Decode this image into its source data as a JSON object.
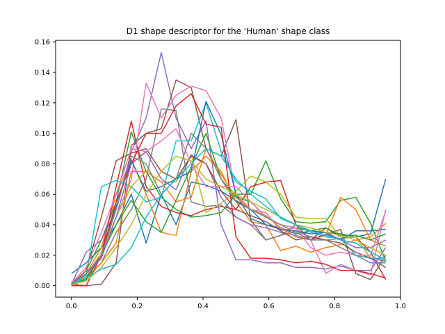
{
  "chart_data": {
    "type": "line",
    "title": "D1 shape descriptor for the 'Human' shape class",
    "xlabel": "",
    "ylabel": "",
    "xlim": [
      -0.048,
      1.0
    ],
    "ylim": [
      -0.0075,
      0.161
    ],
    "x_ticks": [
      "0.0",
      "0.2",
      "0.4",
      "0.6",
      "0.8",
      "1.0"
    ],
    "y_ticks": [
      "0.00",
      "0.02",
      "0.04",
      "0.06",
      "0.08",
      "0.10",
      "0.12",
      "0.14",
      "0.16"
    ],
    "grid": false,
    "legend": "none",
    "x": [
      0.0,
      0.045,
      0.091,
      0.136,
      0.182,
      0.227,
      0.273,
      0.318,
      0.364,
      0.409,
      0.455,
      0.5,
      0.545,
      0.591,
      0.636,
      0.682,
      0.727,
      0.773,
      0.818,
      0.864,
      0.909,
      0.955
    ],
    "series": [
      {
        "color": "#1f77b4",
        "values": [
          0.008,
          0.015,
          0.025,
          0.04,
          0.06,
          0.028,
          0.06,
          0.04,
          0.068,
          0.066,
          0.062,
          0.056,
          0.05,
          0.04,
          0.038,
          0.034,
          0.036,
          0.035,
          0.034,
          0.032,
          0.034,
          0.07
        ]
      },
      {
        "color": "#ff7f0e",
        "values": [
          0.002,
          0.008,
          0.025,
          0.06,
          0.083,
          0.06,
          0.035,
          0.033,
          0.075,
          0.085,
          0.075,
          0.055,
          0.042,
          0.04,
          0.023,
          0.026,
          0.022,
          0.025,
          0.027,
          0.03,
          0.032,
          0.041
        ]
      },
      {
        "color": "#2ca02c",
        "values": [
          0.001,
          0.01,
          0.03,
          0.055,
          0.101,
          0.075,
          0.058,
          0.05,
          0.045,
          0.046,
          0.048,
          0.06,
          0.06,
          0.082,
          0.057,
          0.042,
          0.041,
          0.042,
          0.056,
          0.058,
          0.041,
          0.016
        ]
      },
      {
        "color": "#d62728",
        "values": [
          0.002,
          0.005,
          0.02,
          0.065,
          0.108,
          0.065,
          0.052,
          0.048,
          0.046,
          0.05,
          0.052,
          0.05,
          0.065,
          0.068,
          0.069,
          0.04,
          0.03,
          0.038,
          0.032,
          0.032,
          0.022,
          0.004
        ]
      },
      {
        "color": "#9467bd",
        "values": [
          0.001,
          0.022,
          0.03,
          0.05,
          0.088,
          0.11,
          0.153,
          0.11,
          0.09,
          0.108,
          0.04,
          0.017,
          0.017,
          0.015,
          0.015,
          0.012,
          0.012,
          0.011,
          0.013,
          0.01,
          0.01,
          0.025
        ]
      },
      {
        "color": "#8c564b",
        "values": [
          0.001,
          0.0,
          0.001,
          0.015,
          0.092,
          0.1,
          0.103,
          0.135,
          0.13,
          0.09,
          0.085,
          0.109,
          0.043,
          0.03,
          0.033,
          0.04,
          0.036,
          0.033,
          0.037,
          0.008,
          0.004,
          0.02
        ]
      },
      {
        "color": "#e377c2",
        "values": [
          0.002,
          0.005,
          0.02,
          0.045,
          0.07,
          0.133,
          0.11,
          0.125,
          0.131,
          0.128,
          0.11,
          0.06,
          0.05,
          0.048,
          0.036,
          0.038,
          0.03,
          0.008,
          0.014,
          0.01,
          0.007,
          0.05
        ]
      },
      {
        "color": "#7f7f7f",
        "values": [
          0.001,
          0.005,
          0.015,
          0.035,
          0.05,
          0.07,
          0.116,
          0.115,
          0.055,
          0.052,
          0.053,
          0.045,
          0.04,
          0.03,
          0.033,
          0.036,
          0.032,
          0.03,
          0.031,
          0.032,
          0.018,
          0.016
        ]
      },
      {
        "color": "#bcbd22",
        "values": [
          0.002,
          0.006,
          0.022,
          0.045,
          0.065,
          0.075,
          0.068,
          0.068,
          0.086,
          0.048,
          0.054,
          0.062,
          0.072,
          0.068,
          0.06,
          0.045,
          0.044,
          0.044,
          0.032,
          0.032,
          0.018,
          0.017
        ]
      },
      {
        "color": "#17becf",
        "values": [
          0.001,
          0.007,
          0.065,
          0.069,
          0.065,
          0.055,
          0.058,
          0.095,
          0.095,
          0.12,
          0.088,
          0.068,
          0.062,
          0.057,
          0.044,
          0.04,
          0.035,
          0.032,
          0.031,
          0.02,
          0.018,
          0.018
        ]
      },
      {
        "color": "#1f77b4",
        "values": [
          0.0,
          0.005,
          0.02,
          0.052,
          0.082,
          0.062,
          0.065,
          0.07,
          0.075,
          0.121,
          0.099,
          0.06,
          0.044,
          0.04,
          0.037,
          0.036,
          0.034,
          0.035,
          0.03,
          0.036,
          0.036,
          0.037
        ]
      },
      {
        "color": "#ff7f0e",
        "values": [
          0.0,
          0.004,
          0.015,
          0.028,
          0.075,
          0.075,
          0.068,
          0.055,
          0.058,
          0.09,
          0.073,
          0.058,
          0.05,
          0.046,
          0.038,
          0.032,
          0.03,
          0.033,
          0.058,
          0.05,
          0.03,
          0.026
        ]
      },
      {
        "color": "#2ca02c",
        "values": [
          0.001,
          0.004,
          0.02,
          0.04,
          0.056,
          0.042,
          0.035,
          0.056,
          0.078,
          0.1,
          0.07,
          0.058,
          0.055,
          0.045,
          0.04,
          0.038,
          0.036,
          0.038,
          0.033,
          0.033,
          0.03,
          0.034
        ]
      },
      {
        "color": "#d62728",
        "values": [
          0.0,
          0.0,
          0.02,
          0.055,
          0.08,
          0.1,
          0.1,
          0.118,
          0.126,
          0.106,
          0.104,
          0.032,
          0.018,
          0.018,
          0.017,
          0.015,
          0.016,
          0.014,
          0.01,
          0.01,
          0.008,
          0.005
        ]
      },
      {
        "color": "#9467bd",
        "values": [
          0.001,
          0.008,
          0.018,
          0.045,
          0.08,
          0.088,
          0.07,
          0.063,
          0.086,
          0.08,
          0.058,
          0.045,
          0.04,
          0.038,
          0.035,
          0.033,
          0.03,
          0.034,
          0.03,
          0.025,
          0.025,
          0.03
        ]
      },
      {
        "color": "#8c564b",
        "values": [
          0.001,
          0.01,
          0.045,
          0.082,
          0.087,
          0.09,
          0.075,
          0.07,
          0.085,
          0.08,
          0.062,
          0.05,
          0.046,
          0.042,
          0.036,
          0.03,
          0.032,
          0.03,
          0.028,
          0.022,
          0.018,
          0.012
        ]
      },
      {
        "color": "#e377c2",
        "values": [
          0.002,
          0.012,
          0.035,
          0.06,
          0.09,
          0.088,
          0.095,
          0.103,
          0.08,
          0.065,
          0.065,
          0.065,
          0.055,
          0.045,
          0.04,
          0.038,
          0.025,
          0.02,
          0.022,
          0.02,
          0.02,
          0.049
        ]
      },
      {
        "color": "#7f7f7f",
        "values": [
          0.001,
          0.008,
          0.02,
          0.05,
          0.085,
          0.08,
          0.06,
          0.07,
          0.1,
          0.09,
          0.07,
          0.055,
          0.05,
          0.045,
          0.04,
          0.035,
          0.03,
          0.03,
          0.025,
          0.02,
          0.015,
          0.015
        ]
      },
      {
        "color": "#bcbd22",
        "values": [
          0.001,
          0.003,
          0.012,
          0.025,
          0.04,
          0.06,
          0.075,
          0.085,
          0.082,
          0.07,
          0.065,
          0.06,
          0.055,
          0.05,
          0.045,
          0.04,
          0.038,
          0.035,
          0.033,
          0.03,
          0.025,
          0.02
        ]
      },
      {
        "color": "#17becf",
        "values": [
          0.001,
          0.005,
          0.011,
          0.014,
          0.025,
          0.045,
          0.06,
          0.07,
          0.08,
          0.09,
          0.085,
          0.07,
          0.06,
          0.052,
          0.045,
          0.04,
          0.036,
          0.033,
          0.03,
          0.028,
          0.022,
          0.017
        ]
      }
    ]
  }
}
